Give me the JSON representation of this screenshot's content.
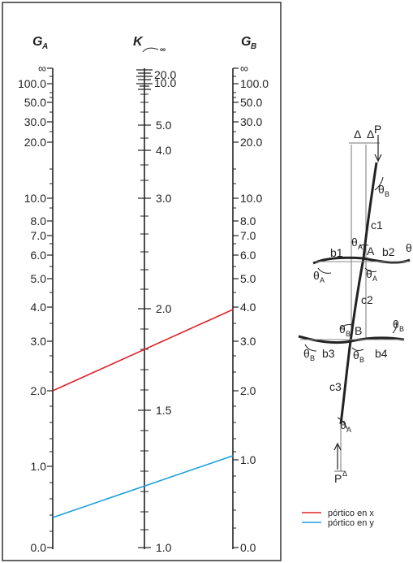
{
  "nomogram": {
    "headers": {
      "ga": {
        "main": "G",
        "sub": "A"
      },
      "k": {
        "main": "K",
        "inf": "∞"
      },
      "gb": {
        "main": "G",
        "sub": "B"
      }
    },
    "ga_labels": [
      "∞",
      "100.0",
      "50.0",
      "30.0",
      "20.0",
      "10.0",
      "8.0",
      "7.0",
      "6.0",
      "5.0",
      "4.0",
      "3.0",
      "2.0",
      "1.0",
      "0.0"
    ],
    "gb_labels": [
      "∞",
      "100.0",
      "50.0",
      "30.0",
      "20.0",
      "10.0",
      "8.0",
      "7.0",
      "6.0",
      "5.0",
      "4.0",
      "3.0",
      "2.0",
      "1.0",
      "0.0"
    ],
    "k_labels": [
      "20.0",
      "10.0",
      "5.0",
      "4.0",
      "3.0",
      "2.0",
      "1.5",
      "1.0"
    ],
    "lines": [
      {
        "name": "pórtico en x",
        "ga": 2.0,
        "k": 1.8,
        "gb": 3.7,
        "color": "#e0202a"
      },
      {
        "name": "pórtico en y",
        "ga": 0.3,
        "k": 1.33,
        "gb": 1.05,
        "color": "#1aa0dc"
      }
    ]
  },
  "frame_figure": {
    "labels": {
      "delta1": "Δ",
      "delta2": "Δ",
      "p_top": "P",
      "theta": "θ",
      "b1": "b1",
      "b2": "b2",
      "b3": "b3",
      "b4": "b4",
      "c1": "c1",
      "c2": "c2",
      "c3": "c3",
      "node_a": "A",
      "node_b": "B",
      "sub_a": "A",
      "sub_b": "B",
      "p_bottom": "P",
      "delta_bottom": "Δ"
    }
  },
  "legend": [
    {
      "label": "pórtico en x",
      "color": "#e0202a"
    },
    {
      "label": "pórtico en y",
      "color": "#1aa0dc"
    }
  ]
}
